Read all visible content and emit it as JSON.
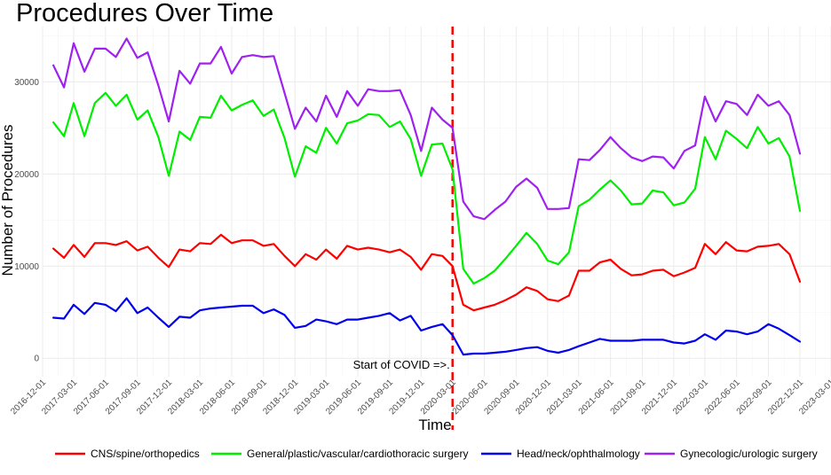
{
  "chart_data": {
    "type": "line",
    "title": "Procedures Over Time",
    "xlabel": "Time",
    "ylabel": "Number of Procedures",
    "xlim": [
      "2016-12-01",
      "2023-03-01"
    ],
    "ylim": [
      -2000,
      36000
    ],
    "grid": true,
    "legend_position": "bottom",
    "x_ticks": [
      "2016-12-01",
      "2017-03-01",
      "2017-06-01",
      "2017-09-01",
      "2017-12-01",
      "2018-03-01",
      "2018-06-01",
      "2018-09-01",
      "2018-12-01",
      "2019-03-01",
      "2019-06-01",
      "2019-09-01",
      "2019-12-01",
      "2020-03-01",
      "2020-06-01",
      "2020-09-01",
      "2020-12-01",
      "2021-03-01",
      "2021-06-01",
      "2021-09-01",
      "2021-12-01",
      "2022-03-01",
      "2022-06-01",
      "2022-09-01",
      "2022-12-01",
      "2023-03-01"
    ],
    "y_ticks": [
      0,
      10000,
      20000,
      30000
    ],
    "annotation": {
      "text": "Start of COVID =>.",
      "x": "2020-03-01",
      "color": "#ff0000"
    },
    "x": [
      "2017-01-01",
      "2017-02-01",
      "2017-03-01",
      "2017-04-01",
      "2017-05-01",
      "2017-06-01",
      "2017-07-01",
      "2017-08-01",
      "2017-09-01",
      "2017-10-01",
      "2017-11-01",
      "2017-12-01",
      "2018-01-01",
      "2018-02-01",
      "2018-03-01",
      "2018-04-01",
      "2018-05-01",
      "2018-06-01",
      "2018-07-01",
      "2018-08-01",
      "2018-09-01",
      "2018-10-01",
      "2018-11-01",
      "2018-12-01",
      "2019-01-01",
      "2019-02-01",
      "2019-03-01",
      "2019-04-01",
      "2019-05-01",
      "2019-06-01",
      "2019-07-01",
      "2019-08-01",
      "2019-09-01",
      "2019-10-01",
      "2019-11-01",
      "2019-12-01",
      "2020-01-01",
      "2020-02-01",
      "2020-03-01",
      "2020-04-01",
      "2020-05-01",
      "2020-06-01",
      "2020-07-01",
      "2020-08-01",
      "2020-09-01",
      "2020-10-01",
      "2020-11-01",
      "2020-12-01",
      "2021-01-01",
      "2021-02-01",
      "2021-03-01",
      "2021-04-01",
      "2021-05-01",
      "2021-06-01",
      "2021-07-01",
      "2021-08-01",
      "2021-09-01",
      "2021-10-01",
      "2021-11-01",
      "2021-12-01",
      "2022-01-01",
      "2022-02-01",
      "2022-03-01",
      "2022-04-01",
      "2022-05-01",
      "2022-06-01",
      "2022-07-01",
      "2022-08-01",
      "2022-09-01",
      "2022-10-01",
      "2022-11-01",
      "2022-12-01"
    ],
    "series": [
      {
        "name": "CNS/spine/orthopedics",
        "color": "#ff0000",
        "values": [
          11900,
          10900,
          12300,
          11000,
          12500,
          12500,
          12300,
          12700,
          11700,
          12100,
          10900,
          9900,
          11800,
          11600,
          12500,
          12400,
          13400,
          12500,
          12800,
          12800,
          12200,
          12400,
          11100,
          10000,
          11300,
          10700,
          11800,
          10800,
          12200,
          11800,
          12000,
          11800,
          11500,
          11800,
          11000,
          9600,
          11300,
          11100,
          10000,
          5800,
          5200,
          5500,
          5800,
          6300,
          6900,
          7700,
          7300,
          6400,
          6200,
          6800,
          9500,
          9500,
          10400,
          10700,
          9700,
          9000,
          9100,
          9500,
          9600,
          8900,
          9300,
          9800,
          12400,
          11300,
          12600,
          11700,
          11600,
          12100,
          12200,
          12400,
          11300,
          8300
        ]
      },
      {
        "name": "General/plastic/vascular/cardiothoracic surgery",
        "color": "#00ee00",
        "values": [
          25600,
          24100,
          27700,
          24100,
          27700,
          28800,
          27400,
          28600,
          25900,
          26900,
          24000,
          19800,
          24600,
          23700,
          26200,
          26100,
          28500,
          26900,
          27500,
          28000,
          26300,
          27000,
          23900,
          19700,
          23000,
          22300,
          25000,
          23300,
          25500,
          25800,
          26500,
          26400,
          25100,
          25700,
          23800,
          19800,
          23200,
          23300,
          20500,
          9700,
          8100,
          8700,
          9500,
          10800,
          12200,
          13600,
          12400,
          10600,
          10200,
          11500,
          16500,
          17200,
          18300,
          19300,
          18200,
          16700,
          16800,
          18200,
          18000,
          16600,
          16900,
          18400,
          24000,
          21600,
          24700,
          23800,
          22800,
          25100,
          23300,
          23900,
          21900,
          16000
        ]
      },
      {
        "name": "Head/neck/ophthalmology",
        "color": "#0000ee",
        "values": [
          4400,
          4300,
          5800,
          4800,
          6000,
          5800,
          5100,
          6500,
          4900,
          5500,
          4400,
          3400,
          4500,
          4400,
          5200,
          5400,
          5500,
          5600,
          5700,
          5700,
          4900,
          5300,
          4700,
          3300,
          3500,
          4200,
          4000,
          3700,
          4200,
          4200,
          4400,
          4600,
          4900,
          4100,
          4600,
          3000,
          3400,
          3700,
          2500,
          400,
          500,
          500,
          600,
          700,
          900,
          1100,
          1200,
          800,
          600,
          900,
          1300,
          1700,
          2100,
          1900,
          1900,
          1900,
          2000,
          2000,
          2000,
          1700,
          1600,
          1900,
          2600,
          2000,
          3000,
          2900,
          2600,
          2900,
          3700,
          3200,
          2500,
          1800
        ]
      },
      {
        "name": "Gynecologic/urologic surgery",
        "color": "#a020f0",
        "values": [
          31800,
          29400,
          34200,
          31100,
          33600,
          33600,
          32700,
          34700,
          32600,
          33200,
          29600,
          25700,
          31200,
          29800,
          32000,
          32000,
          33800,
          30900,
          32700,
          32900,
          32700,
          32800,
          28800,
          24900,
          27200,
          25700,
          28500,
          26200,
          29000,
          27400,
          29200,
          29000,
          29000,
          29100,
          26400,
          22500,
          27200,
          25900,
          25000,
          17000,
          15400,
          15100,
          16100,
          17000,
          18600,
          19500,
          18500,
          16200,
          16200,
          16300,
          21600,
          21500,
          22600,
          24000,
          22800,
          21800,
          21400,
          21900,
          21800,
          20600,
          22500,
          23100,
          28400,
          25700,
          27900,
          27600,
          26400,
          28600,
          27400,
          27900,
          26400,
          22200
        ]
      }
    ]
  }
}
